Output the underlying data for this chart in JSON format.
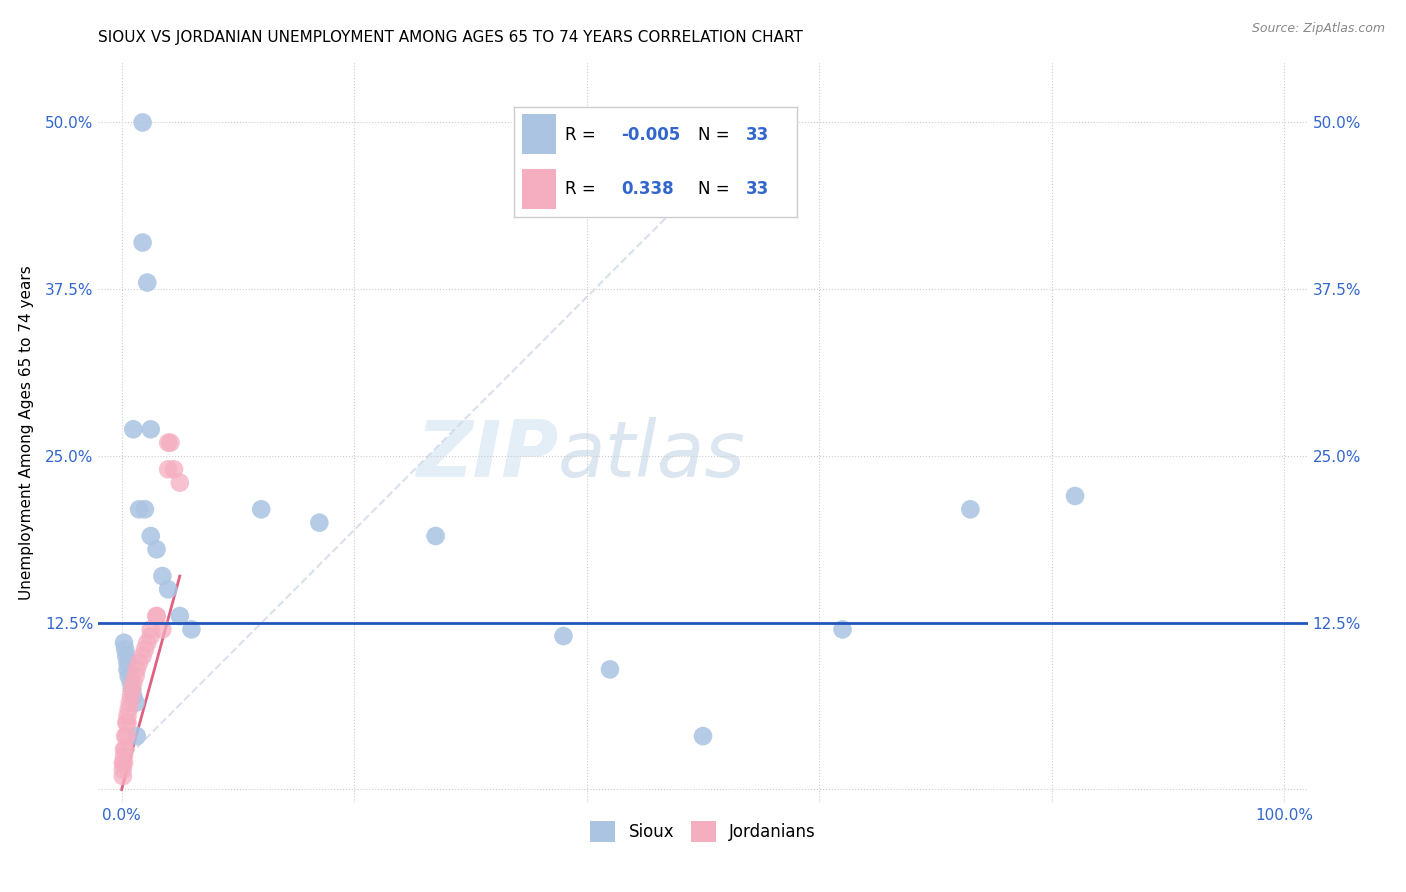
{
  "title": "SIOUX VS JORDANIAN UNEMPLOYMENT AMONG AGES 65 TO 74 YEARS CORRELATION CHART",
  "source": "Source: ZipAtlas.com",
  "ylabel": "Unemployment Among Ages 65 to 74 years",
  "xlim": [
    -0.02,
    1.02
  ],
  "ylim": [
    -0.01,
    0.545
  ],
  "xticks": [
    0.0,
    0.2,
    0.4,
    0.6,
    0.8,
    1.0
  ],
  "xticklabels": [
    "0.0%",
    "",
    "",
    "",
    "",
    "100.0%"
  ],
  "yticks": [
    0.0,
    0.125,
    0.25,
    0.375,
    0.5
  ],
  "yticklabels": [
    "",
    "12.5%",
    "25.0%",
    "37.5%",
    "50.0%"
  ],
  "sioux_R": "-0.005",
  "sioux_N": "33",
  "jordanian_R": "0.338",
  "jordanian_N": "33",
  "sioux_color": "#aac4e2",
  "jordanian_color": "#f5adc0",
  "hline_color": "#2255bb",
  "hline_y": 0.125,
  "watermark_zip": "ZIP",
  "watermark_atlas": "atlas",
  "sioux_x": [
    0.018,
    0.018,
    0.022,
    0.025,
    0.01,
    0.015,
    0.02,
    0.025,
    0.03,
    0.035,
    0.04,
    0.05,
    0.06,
    0.002,
    0.003,
    0.004,
    0.005,
    0.005,
    0.006,
    0.008,
    0.009,
    0.01,
    0.012,
    0.013,
    0.12,
    0.17,
    0.27,
    0.38,
    0.42,
    0.5,
    0.62,
    0.73,
    0.82
  ],
  "sioux_y": [
    0.5,
    0.41,
    0.38,
    0.27,
    0.27,
    0.21,
    0.21,
    0.19,
    0.18,
    0.16,
    0.15,
    0.13,
    0.12,
    0.11,
    0.105,
    0.1,
    0.095,
    0.09,
    0.085,
    0.08,
    0.075,
    0.07,
    0.065,
    0.04,
    0.21,
    0.2,
    0.19,
    0.115,
    0.09,
    0.04,
    0.12,
    0.21,
    0.22
  ],
  "jordanian_x": [
    0.001,
    0.001,
    0.001,
    0.002,
    0.002,
    0.002,
    0.003,
    0.003,
    0.004,
    0.004,
    0.005,
    0.005,
    0.006,
    0.007,
    0.008,
    0.009,
    0.01,
    0.012,
    0.013,
    0.015,
    0.018,
    0.02,
    0.022,
    0.025,
    0.025,
    0.03,
    0.03,
    0.035,
    0.04,
    0.04,
    0.042,
    0.045,
    0.05
  ],
  "jordanian_y": [
    0.01,
    0.015,
    0.02,
    0.02,
    0.025,
    0.03,
    0.03,
    0.04,
    0.04,
    0.05,
    0.05,
    0.055,
    0.06,
    0.065,
    0.07,
    0.075,
    0.08,
    0.085,
    0.09,
    0.095,
    0.1,
    0.105,
    0.11,
    0.115,
    0.12,
    0.13,
    0.13,
    0.12,
    0.24,
    0.26,
    0.26,
    0.24,
    0.23
  ],
  "dashed_line_x": [
    0.0,
    0.55
  ],
  "dashed_line_y": [
    0.0,
    0.5
  ],
  "solid_line_x": [
    0.0,
    0.05
  ],
  "solid_line_y": [
    0.0,
    0.16
  ]
}
